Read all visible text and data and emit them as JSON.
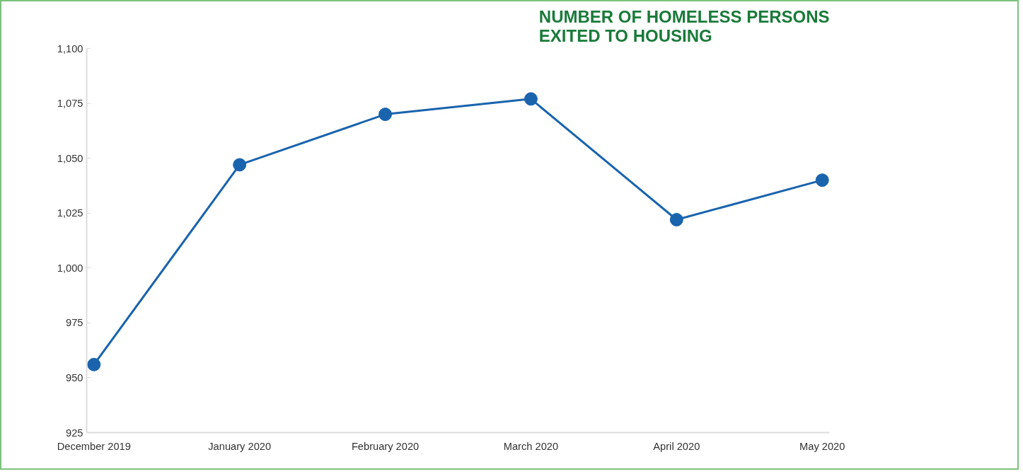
{
  "chart_data": {
    "type": "line",
    "title": "NUMBER OF HOMELESS PERSONS\nEXITED TO HOUSING",
    "categories": [
      "December 2019",
      "January 2020",
      "February 2020",
      "March 2020",
      "April 2020",
      "May 2020"
    ],
    "series": [
      {
        "color": "#1a63ad",
        "values": [
          956,
          1047,
          1070,
          1077,
          1022,
          1040
        ]
      }
    ],
    "ylim": [
      925,
      1100
    ],
    "yticks": [
      925,
      950,
      975,
      {
        "value": 1000,
        "label": "1,000"
      },
      {
        "value": 1025,
        "label": "1,025"
      },
      {
        "value": 1050,
        "label": "1,050"
      },
      {
        "value": 1075,
        "label": "1,075"
      },
      {
        "value": 1100,
        "label": "1,100"
      }
    ],
    "grid": false,
    "marker": "circle",
    "line_style": "solid"
  }
}
